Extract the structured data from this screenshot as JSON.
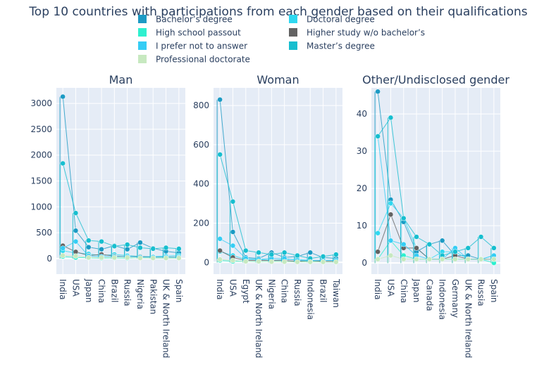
{
  "chart_data": {
    "type": "line",
    "title": "Top 10 countries with participations from each gender based on their qualifications",
    "legend": {
      "placement": "top-center",
      "entries": [
        {
          "name": "Bachelor’s degree",
          "color": "#1c9ac4"
        },
        {
          "name": "Doctoral degree",
          "color": "#2fd8f0"
        },
        {
          "name": "High school passout",
          "color": "#2ef0cf"
        },
        {
          "name": "Higher study w/o bachelor’s",
          "color": "#636363"
        },
        {
          "name": "I prefer not to answer",
          "color": "#35cdf5"
        },
        {
          "name": "Master’s degree",
          "color": "#17becf"
        },
        {
          "name": "Professional doctorate",
          "color": "#c7e9c0"
        }
      ]
    },
    "grid": true,
    "panels": [
      {
        "title": "Man",
        "categories": [
          "India",
          "USA",
          "Japan",
          "China",
          "Brazil",
          "Russia",
          "Nigeria",
          "Pakistan",
          "UK & North Ireland",
          "Spain"
        ],
        "ylim": [
          -300,
          3300
        ],
        "yticks": [
          0,
          500,
          1000,
          1500,
          2000,
          2500,
          3000
        ],
        "series": [
          {
            "name": "Bachelor’s degree",
            "values": [
              3130,
              540,
              220,
              180,
              250,
              180,
              310,
              200,
              140,
              110
            ]
          },
          {
            "name": "Doctoral degree",
            "values": [
              150,
              110,
              90,
              60,
              80,
              60,
              40,
              40,
              50,
              60
            ]
          },
          {
            "name": "High school passout",
            "values": [
              40,
              20,
              15,
              10,
              12,
              10,
              15,
              10,
              8,
              8
            ]
          },
          {
            "name": "Higher study w/o bachelor’s",
            "values": [
              250,
              130,
              60,
              80,
              50,
              40,
              40,
              30,
              30,
              30
            ]
          },
          {
            "name": "I prefer not to answer",
            "values": [
              200,
              330,
              50,
              40,
              40,
              40,
              30,
              30,
              30,
              25
            ]
          },
          {
            "name": "Master’s degree",
            "values": [
              1840,
              880,
              350,
              330,
              240,
              270,
              210,
              190,
              210,
              190
            ]
          },
          {
            "name": "Professional doctorate",
            "values": [
              60,
              50,
              20,
              20,
              20,
              20,
              10,
              10,
              10,
              10
            ]
          }
        ]
      },
      {
        "title": "Woman",
        "categories": [
          "India",
          "USA",
          "Egypt",
          "UK & North Ireland",
          "Nigeria",
          "China",
          "Russia",
          "Indonesia",
          "Brazil",
          "Taiwan"
        ],
        "ylim": [
          -60,
          890
        ],
        "yticks": [
          0,
          200,
          400,
          600,
          800
        ],
        "series": [
          {
            "name": "Bachelor’s degree",
            "values": [
              830,
              155,
              25,
              20,
              50,
              25,
              30,
              50,
              25,
              20
            ]
          },
          {
            "name": "Doctoral degree",
            "values": [
              55,
              35,
              15,
              15,
              10,
              15,
              15,
              10,
              10,
              10
            ]
          },
          {
            "name": "High school passout",
            "values": [
              10,
              5,
              5,
              3,
              5,
              3,
              3,
              5,
              2,
              2
            ]
          },
          {
            "name": "Higher study w/o bachelor’s",
            "values": [
              60,
              25,
              10,
              10,
              10,
              10,
              5,
              10,
              5,
              5
            ]
          },
          {
            "name": "I prefer not to answer",
            "values": [
              120,
              85,
              20,
              15,
              20,
              20,
              10,
              10,
              10,
              10
            ]
          },
          {
            "name": "Master’s degree",
            "values": [
              550,
              310,
              60,
              50,
              40,
              50,
              35,
              20,
              30,
              40
            ]
          },
          {
            "name": "Professional doctorate",
            "values": [
              15,
              10,
              5,
              5,
              3,
              3,
              2,
              2,
              2,
              2
            ]
          }
        ]
      },
      {
        "title": "Other/Undisclosed gender",
        "categories": [
          "India",
          "USA",
          "China",
          "Japan",
          "Canada",
          "Indonesia",
          "Germany",
          "UK & North Ireland",
          "Russia",
          "Spain"
        ],
        "ylim": [
          -3,
          47
        ],
        "yticks": [
          0,
          10,
          20,
          30,
          40
        ],
        "series": [
          {
            "name": "Bachelor’s degree",
            "values": [
              46,
              17,
              11,
              3,
              5,
              6,
              2,
              2,
              1,
              1
            ]
          },
          {
            "name": "Doctoral degree",
            "values": [
              8,
              16,
              12,
              4,
              1,
              3,
              3,
              1,
              1,
              2
            ]
          },
          {
            "name": "High school passout",
            "values": [
              1,
              6,
              2,
              1,
              1,
              1,
              1,
              1,
              1,
              0
            ]
          },
          {
            "name": "Higher study w/o bachelor’s",
            "values": [
              3,
              13,
              4,
              4,
              1,
              1,
              2,
              1,
              1,
              1
            ]
          },
          {
            "name": "I prefer not to answer",
            "values": [
              34,
              6,
              5,
              2,
              1,
              1,
              4,
              1,
              1,
              2
            ]
          },
          {
            "name": "Master’s degree",
            "values": [
              34,
              39,
              12,
              7,
              5,
              2,
              3,
              4,
              7,
              4
            ]
          },
          {
            "name": "Professional doctorate",
            "values": [
              1,
              2,
              1,
              1,
              1,
              1,
              1,
              1,
              1,
              1
            ]
          }
        ]
      }
    ]
  }
}
